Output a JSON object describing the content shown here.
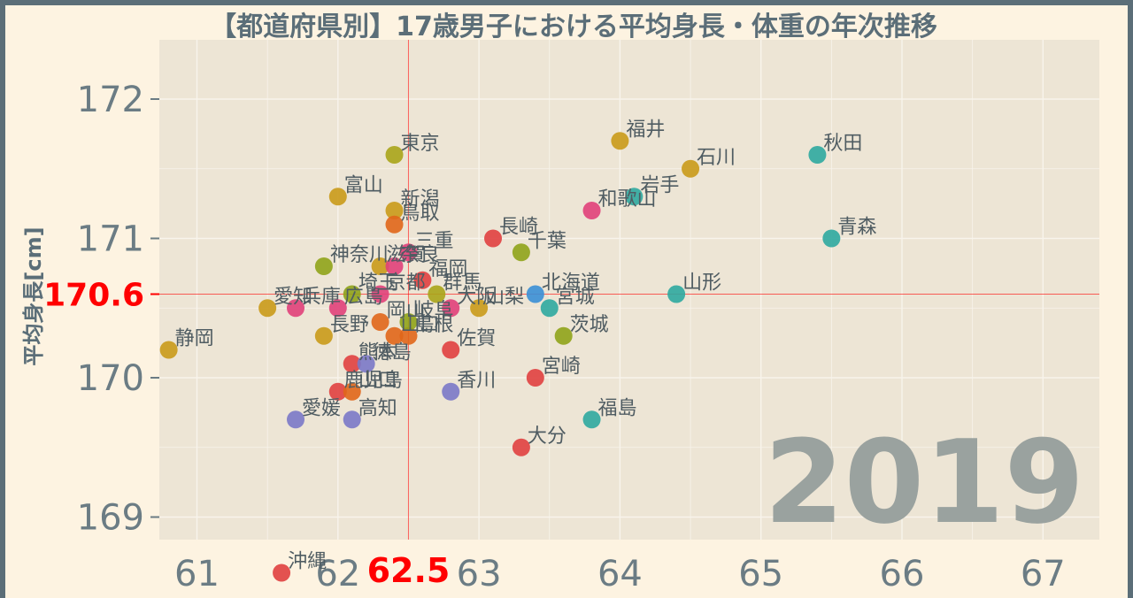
{
  "chart_data": {
    "type": "scatter",
    "title": "【都道府県別】17歳男子における平均身長・体重の年次推移",
    "xlabel": "",
    "ylabel": "平均身長[cm]",
    "year": "2019",
    "xlim": [
      60.7,
      67.4
    ],
    "ylim": [
      168.85,
      172.4
    ],
    "x_ticks": [
      61,
      62,
      63,
      64,
      65,
      66,
      67
    ],
    "y_ticks": [
      169,
      170,
      171,
      172
    ],
    "average": {
      "x": 62.5,
      "y": 170.6,
      "x_label": "62.5",
      "y_label": "170.6",
      "color": "#ff0000"
    },
    "colors": {
      "background": "#fdf3e1",
      "panel": "#ede5d5",
      "grid": "#f8f4ec",
      "axis_text": "#6b7c84",
      "point_label": "#4f5c62",
      "year_text": "#9aa29f",
      "frame": "#5b6e78"
    },
    "points": [
      {
        "label": "東京",
        "x": 62.4,
        "y": 171.6,
        "color": "#a9a41a"
      },
      {
        "label": "富山",
        "x": 62.0,
        "y": 171.3,
        "color": "#c99a1a"
      },
      {
        "label": "新潟",
        "x": 62.4,
        "y": 171.2,
        "color": "#c99a1a"
      },
      {
        "label": "鳥取",
        "x": 62.4,
        "y": 171.1,
        "color": "#e0661a"
      },
      {
        "label": "三重",
        "x": 62.5,
        "y": 170.9,
        "color": "#e0407a"
      },
      {
        "label": "神奈川",
        "x": 61.9,
        "y": 170.8,
        "color": "#8fa31a"
      },
      {
        "label": "滋賀",
        "x": 62.3,
        "y": 170.8,
        "color": "#c99a1a"
      },
      {
        "label": "奈良",
        "x": 62.4,
        "y": 170.8,
        "color": "#e0407a"
      },
      {
        "label": "福岡",
        "x": 62.6,
        "y": 170.7,
        "color": "#e04040"
      },
      {
        "label": "埼玉",
        "x": 62.1,
        "y": 170.6,
        "color": "#8fa31a"
      },
      {
        "label": "京都",
        "x": 62.3,
        "y": 170.6,
        "color": "#e0407a"
      },
      {
        "label": "群馬",
        "x": 62.7,
        "y": 170.6,
        "color": "#a9a41a"
      },
      {
        "label": "愛知",
        "x": 61.5,
        "y": 170.5,
        "color": "#c99a1a"
      },
      {
        "label": "兵庫",
        "x": 61.7,
        "y": 170.5,
        "color": "#e0407a"
      },
      {
        "label": "広島",
        "x": 62.0,
        "y": 170.5,
        "color": "#e0407a"
      },
      {
        "label": "大阪",
        "x": 62.8,
        "y": 170.5,
        "color": "#e0407a"
      },
      {
        "label": "山梨",
        "x": 63.0,
        "y": 170.5,
        "color": "#c99a1a"
      },
      {
        "label": "北海道",
        "x": 63.4,
        "y": 170.6,
        "color": "#3a8fd6"
      },
      {
        "label": "宮城",
        "x": 63.5,
        "y": 170.5,
        "color": "#2ea8a0"
      },
      {
        "label": "山形",
        "x": 64.4,
        "y": 170.6,
        "color": "#2ea8a0"
      },
      {
        "label": "長野",
        "x": 61.9,
        "y": 170.3,
        "color": "#c99a1a"
      },
      {
        "label": "岡山",
        "x": 62.3,
        "y": 170.4,
        "color": "#e0661a"
      },
      {
        "label": "山口",
        "x": 62.4,
        "y": 170.3,
        "color": "#e0661a"
      },
      {
        "label": "島根",
        "x": 62.5,
        "y": 170.3,
        "color": "#e0661a"
      },
      {
        "label": "岐阜",
        "x": 62.5,
        "y": 170.4,
        "color": "#8fa31a"
      },
      {
        "label": "佐賀",
        "x": 62.8,
        "y": 170.2,
        "color": "#e04040"
      },
      {
        "label": "茨城",
        "x": 63.6,
        "y": 170.3,
        "color": "#8fa31a"
      },
      {
        "label": "静岡",
        "x": 60.8,
        "y": 170.2,
        "color": "#c99a1a"
      },
      {
        "label": "熊本",
        "x": 62.1,
        "y": 170.1,
        "color": "#e04040"
      },
      {
        "label": "徳島",
        "x": 62.2,
        "y": 170.1,
        "color": "#7a78c8"
      },
      {
        "label": "宮崎",
        "x": 63.4,
        "y": 170.0,
        "color": "#e04040"
      },
      {
        "label": "鹿児島",
        "x": 62.0,
        "y": 169.9,
        "color": "#e04040"
      },
      {
        "label": "山口",
        "x": 62.1,
        "y": 169.9,
        "color": "#e0661a"
      },
      {
        "label": "香川",
        "x": 62.8,
        "y": 169.9,
        "color": "#7a78c8"
      },
      {
        "label": "愛媛",
        "x": 61.7,
        "y": 169.7,
        "color": "#7a78c8"
      },
      {
        "label": "高知",
        "x": 62.1,
        "y": 169.7,
        "color": "#7a78c8"
      },
      {
        "label": "福島",
        "x": 63.8,
        "y": 169.7,
        "color": "#2ea8a0"
      },
      {
        "label": "大分",
        "x": 63.3,
        "y": 169.5,
        "color": "#e04040"
      },
      {
        "label": "沖縄",
        "x": 61.6,
        "y": 168.6,
        "color": "#e04040"
      },
      {
        "label": "長崎",
        "x": 63.1,
        "y": 171.0,
        "color": "#e04040"
      },
      {
        "label": "千葉",
        "x": 63.3,
        "y": 170.9,
        "color": "#8fa31a"
      },
      {
        "label": "和歌山",
        "x": 63.8,
        "y": 171.2,
        "color": "#e0407a"
      },
      {
        "label": "岩手",
        "x": 64.1,
        "y": 171.3,
        "color": "#2ea8a0"
      },
      {
        "label": "福井",
        "x": 64.0,
        "y": 171.7,
        "color": "#c99a1a"
      },
      {
        "label": "石川",
        "x": 64.5,
        "y": 171.5,
        "color": "#c99a1a"
      },
      {
        "label": "秋田",
        "x": 65.4,
        "y": 171.6,
        "color": "#2ea8a0"
      },
      {
        "label": "青森",
        "x": 65.5,
        "y": 171.0,
        "color": "#2ea8a0"
      }
    ]
  }
}
